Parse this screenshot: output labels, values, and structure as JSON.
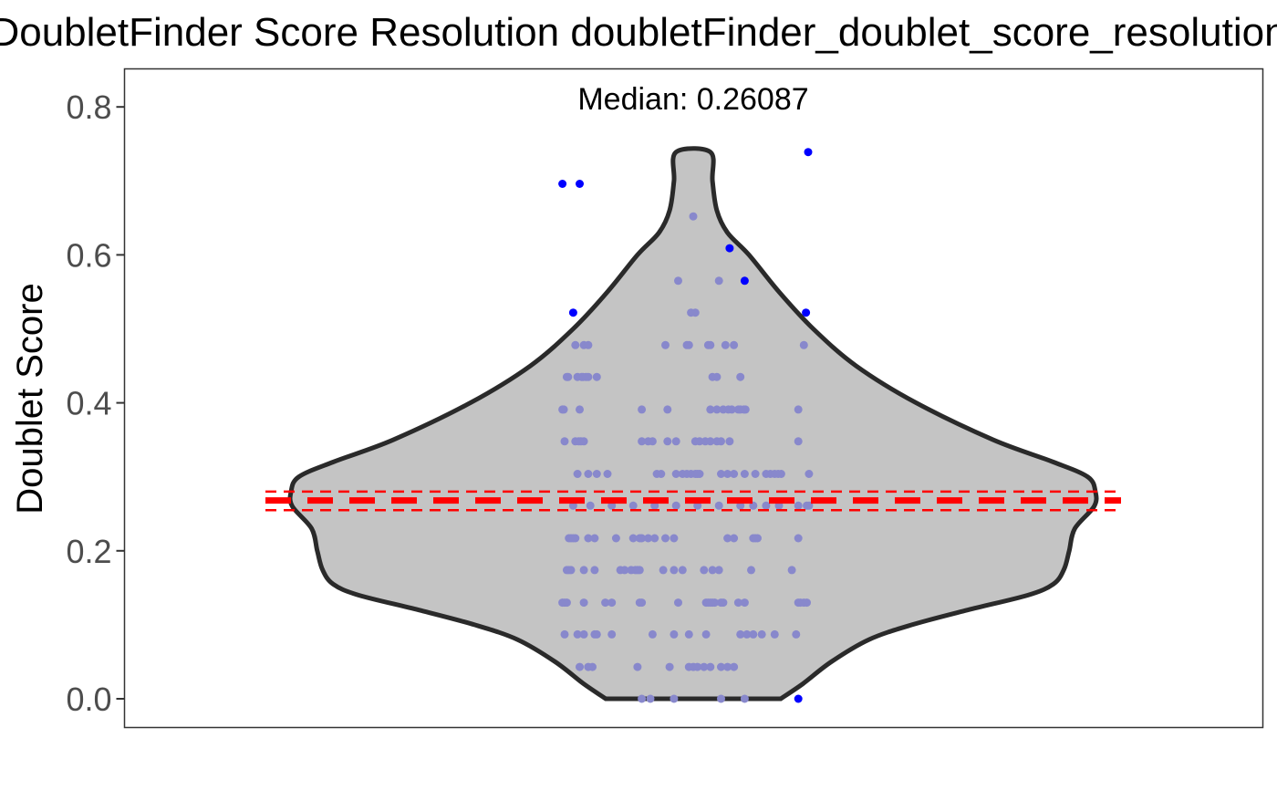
{
  "chart_data": {
    "type": "violin",
    "title": "DoubletFinder Score Resolution doubletFinder_doublet_score_resolution",
    "ylabel": "Doublet Score",
    "xlabel": "",
    "ylim": [
      -0.04,
      0.853
    ],
    "yticks": [
      0.0,
      0.2,
      0.4,
      0.6,
      0.8
    ],
    "ytick_labels": [
      "0.0",
      "0.2",
      "0.4",
      "0.6",
      "0.8"
    ],
    "grid": false,
    "annotation": "Median: 0.26087",
    "median": 0.26087,
    "reference_lines": [
      0.268,
      0.255,
      0.28
    ],
    "violin": {
      "min": 0.0,
      "max": 0.739,
      "halfwidth_profile": [
        [
          0.0,
          0.204
        ],
        [
          0.02,
          0.255
        ],
        [
          0.05,
          0.322
        ],
        [
          0.08,
          0.41
        ],
        [
          0.1,
          0.51
        ],
        [
          0.12,
          0.64
        ],
        [
          0.14,
          0.78
        ],
        [
          0.155,
          0.84
        ],
        [
          0.175,
          0.865
        ],
        [
          0.2,
          0.877
        ],
        [
          0.23,
          0.89
        ],
        [
          0.26,
          0.935
        ],
        [
          0.28,
          0.938
        ],
        [
          0.3,
          0.92
        ],
        [
          0.32,
          0.84
        ],
        [
          0.35,
          0.7
        ],
        [
          0.4,
          0.52
        ],
        [
          0.45,
          0.38
        ],
        [
          0.5,
          0.28
        ],
        [
          0.55,
          0.2
        ],
        [
          0.6,
          0.13
        ],
        [
          0.63,
          0.08
        ],
        [
          0.66,
          0.055
        ],
        [
          0.7,
          0.045
        ],
        [
          0.739,
          0.04
        ]
      ]
    },
    "colors": {
      "violin_fill": "#c4c4c4",
      "violin_stroke": "#2a2a2a",
      "inner_points": "#8888cc",
      "outlier_points": "#0000ff",
      "reference_line": "#ff0000"
    },
    "outliers": [
      {
        "x": 0.695,
        "y": 0.696
      },
      {
        "x": 0.735,
        "y": 0.696
      },
      {
        "x": 0.72,
        "y": 0.522
      },
      {
        "x": 1.268,
        "y": 0.739
      },
      {
        "x": 1.085,
        "y": 0.609
      },
      {
        "x": 1.12,
        "y": 0.565
      },
      {
        "x": 1.263,
        "y": 0.522
      },
      {
        "x": 1.245,
        "y": 0.0
      }
    ],
    "points": [
      {
        "x": 1.0,
        "y": 0.652
      },
      {
        "x": 0.965,
        "y": 0.565
      },
      {
        "x": 1.06,
        "y": 0.565
      },
      {
        "x": 0.995,
        "y": 0.522
      },
      {
        "x": 1.005,
        "y": 0.522
      },
      {
        "x": 0.725,
        "y": 0.478
      },
      {
        "x": 0.745,
        "y": 0.478
      },
      {
        "x": 0.755,
        "y": 0.478
      },
      {
        "x": 0.935,
        "y": 0.478
      },
      {
        "x": 0.985,
        "y": 0.478
      },
      {
        "x": 0.99,
        "y": 0.478
      },
      {
        "x": 1.035,
        "y": 0.478
      },
      {
        "x": 1.04,
        "y": 0.478
      },
      {
        "x": 1.075,
        "y": 0.478
      },
      {
        "x": 1.095,
        "y": 0.478
      },
      {
        "x": 1.258,
        "y": 0.478
      },
      {
        "x": 0.705,
        "y": 0.435
      },
      {
        "x": 0.708,
        "y": 0.435
      },
      {
        "x": 0.73,
        "y": 0.435
      },
      {
        "x": 0.74,
        "y": 0.435
      },
      {
        "x": 0.743,
        "y": 0.435
      },
      {
        "x": 0.75,
        "y": 0.435
      },
      {
        "x": 0.755,
        "y": 0.435
      },
      {
        "x": 0.775,
        "y": 0.435
      },
      {
        "x": 1.045,
        "y": 0.435
      },
      {
        "x": 1.055,
        "y": 0.435
      },
      {
        "x": 1.11,
        "y": 0.435
      },
      {
        "x": 0.695,
        "y": 0.391
      },
      {
        "x": 0.698,
        "y": 0.391
      },
      {
        "x": 0.735,
        "y": 0.391
      },
      {
        "x": 0.88,
        "y": 0.391
      },
      {
        "x": 0.94,
        "y": 0.391
      },
      {
        "x": 1.04,
        "y": 0.391
      },
      {
        "x": 1.055,
        "y": 0.391
      },
      {
        "x": 1.07,
        "y": 0.391
      },
      {
        "x": 1.082,
        "y": 0.391
      },
      {
        "x": 1.09,
        "y": 0.391
      },
      {
        "x": 1.105,
        "y": 0.391
      },
      {
        "x": 1.11,
        "y": 0.391
      },
      {
        "x": 1.118,
        "y": 0.391
      },
      {
        "x": 1.122,
        "y": 0.391
      },
      {
        "x": 1.245,
        "y": 0.391
      },
      {
        "x": 0.7,
        "y": 0.348
      },
      {
        "x": 0.725,
        "y": 0.348
      },
      {
        "x": 0.733,
        "y": 0.348
      },
      {
        "x": 0.738,
        "y": 0.348
      },
      {
        "x": 0.745,
        "y": 0.348
      },
      {
        "x": 0.88,
        "y": 0.348
      },
      {
        "x": 0.895,
        "y": 0.348
      },
      {
        "x": 0.905,
        "y": 0.348
      },
      {
        "x": 0.94,
        "y": 0.348
      },
      {
        "x": 0.96,
        "y": 0.348
      },
      {
        "x": 1.005,
        "y": 0.348
      },
      {
        "x": 1.015,
        "y": 0.348
      },
      {
        "x": 1.028,
        "y": 0.348
      },
      {
        "x": 1.04,
        "y": 0.348
      },
      {
        "x": 1.055,
        "y": 0.348
      },
      {
        "x": 1.065,
        "y": 0.348
      },
      {
        "x": 1.085,
        "y": 0.348
      },
      {
        "x": 1.245,
        "y": 0.348
      },
      {
        "x": 0.73,
        "y": 0.304
      },
      {
        "x": 0.755,
        "y": 0.304
      },
      {
        "x": 0.775,
        "y": 0.304
      },
      {
        "x": 0.8,
        "y": 0.304
      },
      {
        "x": 0.915,
        "y": 0.304
      },
      {
        "x": 0.925,
        "y": 0.304
      },
      {
        "x": 0.96,
        "y": 0.304
      },
      {
        "x": 0.975,
        "y": 0.304
      },
      {
        "x": 0.985,
        "y": 0.304
      },
      {
        "x": 0.995,
        "y": 0.304
      },
      {
        "x": 1.005,
        "y": 0.304
      },
      {
        "x": 1.01,
        "y": 0.304
      },
      {
        "x": 1.015,
        "y": 0.304
      },
      {
        "x": 1.065,
        "y": 0.304
      },
      {
        "x": 1.08,
        "y": 0.304
      },
      {
        "x": 1.095,
        "y": 0.304
      },
      {
        "x": 1.12,
        "y": 0.304
      },
      {
        "x": 1.145,
        "y": 0.304
      },
      {
        "x": 1.17,
        "y": 0.304
      },
      {
        "x": 1.18,
        "y": 0.304
      },
      {
        "x": 1.19,
        "y": 0.304
      },
      {
        "x": 1.198,
        "y": 0.304
      },
      {
        "x": 1.205,
        "y": 0.304
      },
      {
        "x": 1.27,
        "y": 0.304
      },
      {
        "x": 0.72,
        "y": 0.261
      },
      {
        "x": 0.76,
        "y": 0.261
      },
      {
        "x": 0.81,
        "y": 0.261
      },
      {
        "x": 0.86,
        "y": 0.261
      },
      {
        "x": 0.91,
        "y": 0.261
      },
      {
        "x": 0.96,
        "y": 0.261
      },
      {
        "x": 1.01,
        "y": 0.261
      },
      {
        "x": 1.06,
        "y": 0.261
      },
      {
        "x": 1.11,
        "y": 0.261
      },
      {
        "x": 1.14,
        "y": 0.261
      },
      {
        "x": 1.17,
        "y": 0.261
      },
      {
        "x": 1.2,
        "y": 0.261
      },
      {
        "x": 1.245,
        "y": 0.261
      },
      {
        "x": 1.265,
        "y": 0.261
      },
      {
        "x": 1.27,
        "y": 0.261
      },
      {
        "x": 0.71,
        "y": 0.217
      },
      {
        "x": 0.715,
        "y": 0.217
      },
      {
        "x": 0.72,
        "y": 0.217
      },
      {
        "x": 0.725,
        "y": 0.217
      },
      {
        "x": 0.755,
        "y": 0.217
      },
      {
        "x": 0.77,
        "y": 0.217
      },
      {
        "x": 0.82,
        "y": 0.217
      },
      {
        "x": 0.86,
        "y": 0.217
      },
      {
        "x": 0.875,
        "y": 0.217
      },
      {
        "x": 0.88,
        "y": 0.217
      },
      {
        "x": 0.895,
        "y": 0.217
      },
      {
        "x": 0.91,
        "y": 0.217
      },
      {
        "x": 0.935,
        "y": 0.217
      },
      {
        "x": 0.955,
        "y": 0.217
      },
      {
        "x": 1.08,
        "y": 0.217
      },
      {
        "x": 1.095,
        "y": 0.217
      },
      {
        "x": 1.14,
        "y": 0.217
      },
      {
        "x": 1.145,
        "y": 0.217
      },
      {
        "x": 1.15,
        "y": 0.217
      },
      {
        "x": 1.245,
        "y": 0.217
      },
      {
        "x": 0.705,
        "y": 0.174
      },
      {
        "x": 0.71,
        "y": 0.174
      },
      {
        "x": 0.715,
        "y": 0.174
      },
      {
        "x": 0.745,
        "y": 0.174
      },
      {
        "x": 0.77,
        "y": 0.174
      },
      {
        "x": 0.83,
        "y": 0.174
      },
      {
        "x": 0.84,
        "y": 0.174
      },
      {
        "x": 0.855,
        "y": 0.174
      },
      {
        "x": 0.865,
        "y": 0.174
      },
      {
        "x": 0.87,
        "y": 0.174
      },
      {
        "x": 0.875,
        "y": 0.174
      },
      {
        "x": 0.93,
        "y": 0.174
      },
      {
        "x": 0.955,
        "y": 0.174
      },
      {
        "x": 0.975,
        "y": 0.174
      },
      {
        "x": 1.025,
        "y": 0.174
      },
      {
        "x": 1.045,
        "y": 0.174
      },
      {
        "x": 1.06,
        "y": 0.174
      },
      {
        "x": 1.135,
        "y": 0.174
      },
      {
        "x": 1.23,
        "y": 0.174
      },
      {
        "x": 0.695,
        "y": 0.13
      },
      {
        "x": 0.7,
        "y": 0.13
      },
      {
        "x": 0.705,
        "y": 0.13
      },
      {
        "x": 0.745,
        "y": 0.13
      },
      {
        "x": 0.795,
        "y": 0.13
      },
      {
        "x": 0.81,
        "y": 0.13
      },
      {
        "x": 0.875,
        "y": 0.13
      },
      {
        "x": 0.88,
        "y": 0.13
      },
      {
        "x": 0.965,
        "y": 0.13
      },
      {
        "x": 1.03,
        "y": 0.13
      },
      {
        "x": 1.035,
        "y": 0.13
      },
      {
        "x": 1.04,
        "y": 0.13
      },
      {
        "x": 1.045,
        "y": 0.13
      },
      {
        "x": 1.05,
        "y": 0.13
      },
      {
        "x": 1.065,
        "y": 0.13
      },
      {
        "x": 1.07,
        "y": 0.13
      },
      {
        "x": 1.105,
        "y": 0.13
      },
      {
        "x": 1.12,
        "y": 0.13
      },
      {
        "x": 1.245,
        "y": 0.13
      },
      {
        "x": 1.25,
        "y": 0.13
      },
      {
        "x": 1.258,
        "y": 0.13
      },
      {
        "x": 1.265,
        "y": 0.13
      },
      {
        "x": 0.7,
        "y": 0.087
      },
      {
        "x": 0.73,
        "y": 0.087
      },
      {
        "x": 0.745,
        "y": 0.087
      },
      {
        "x": 0.77,
        "y": 0.087
      },
      {
        "x": 0.775,
        "y": 0.087
      },
      {
        "x": 0.81,
        "y": 0.087
      },
      {
        "x": 0.905,
        "y": 0.087
      },
      {
        "x": 0.955,
        "y": 0.087
      },
      {
        "x": 0.99,
        "y": 0.087
      },
      {
        "x": 1.03,
        "y": 0.087
      },
      {
        "x": 1.11,
        "y": 0.087
      },
      {
        "x": 1.125,
        "y": 0.087
      },
      {
        "x": 1.14,
        "y": 0.087
      },
      {
        "x": 1.16,
        "y": 0.087
      },
      {
        "x": 1.19,
        "y": 0.087
      },
      {
        "x": 1.24,
        "y": 0.087
      },
      {
        "x": 0.735,
        "y": 0.043
      },
      {
        "x": 0.755,
        "y": 0.043
      },
      {
        "x": 0.765,
        "y": 0.043
      },
      {
        "x": 0.87,
        "y": 0.043
      },
      {
        "x": 0.945,
        "y": 0.043
      },
      {
        "x": 0.99,
        "y": 0.043
      },
      {
        "x": 1.0,
        "y": 0.043
      },
      {
        "x": 1.01,
        "y": 0.043
      },
      {
        "x": 1.025,
        "y": 0.043
      },
      {
        "x": 1.04,
        "y": 0.043
      },
      {
        "x": 1.065,
        "y": 0.043
      },
      {
        "x": 1.08,
        "y": 0.043
      },
      {
        "x": 1.095,
        "y": 0.043
      },
      {
        "x": 0.88,
        "y": 0.0
      },
      {
        "x": 0.9,
        "y": 0.0
      },
      {
        "x": 0.955,
        "y": 0.0
      },
      {
        "x": 1.065,
        "y": 0.0
      },
      {
        "x": 1.12,
        "y": 0.0
      }
    ]
  }
}
